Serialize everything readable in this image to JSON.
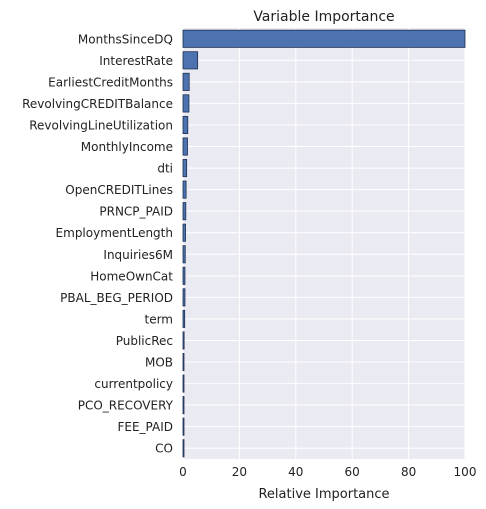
{
  "chart_data": {
    "type": "bar",
    "orientation": "horizontal",
    "title": "Variable Importance",
    "xlabel": "Relative Importance",
    "ylabel": "",
    "xlim": [
      0,
      100
    ],
    "xticks": [
      0,
      20,
      40,
      60,
      80,
      100
    ],
    "grid": true,
    "categories": [
      "MonthsSinceDQ",
      "InterestRate",
      "EarliestCreditMonths",
      "RevolvingCREDITBalance",
      "RevolvingLineUtilization",
      "MonthlyIncome",
      "dti",
      "OpenCREDITLines",
      "PRNCP_PAID",
      "EmploymentLength",
      "Inquiries6M",
      "HomeOwnCat",
      "PBAL_BEG_PERIOD",
      "term",
      "PublicRec",
      "MOB",
      "currentpolicy",
      "PCO_RECOVERY",
      "FEE_PAID",
      "CO"
    ],
    "values": [
      100,
      5.2,
      2.2,
      2.1,
      1.7,
      1.6,
      1.3,
      1.1,
      1.0,
      0.9,
      0.8,
      0.7,
      0.7,
      0.6,
      0.4,
      0.3,
      0.3,
      0.25,
      0.2,
      0.15
    ],
    "colors": {
      "bar_fill": "#4c72b0",
      "bar_edge": "#1f2f4f",
      "plot_background": "#eaeaf2",
      "grid": "#ffffff",
      "text": "#222222"
    }
  }
}
